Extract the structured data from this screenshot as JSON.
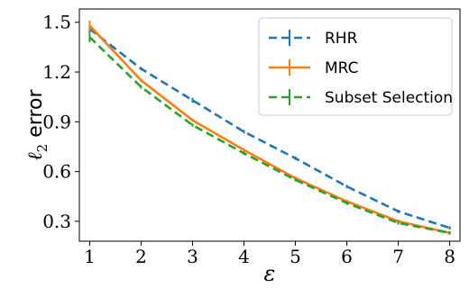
{
  "chart_data": {
    "type": "line",
    "x": [
      1,
      2,
      3,
      4,
      5,
      6,
      7,
      8
    ],
    "xlabel": "ε",
    "ylabel_math": "ℓ",
    "ylabel_sub": "2",
    "ylabel_text": " error",
    "xlim": [
      0.8,
      8.2
    ],
    "ylim": [
      0.18,
      1.58
    ],
    "xticks": [
      "1",
      "2",
      "3",
      "4",
      "5",
      "6",
      "7",
      "8"
    ],
    "yticks": [
      "0.3",
      "0.6",
      "0.9",
      "1.2",
      "1.5"
    ],
    "grid": false,
    "legend_position": "top-right",
    "series": [
      {
        "name": "RHR",
        "color": "#1f77b4",
        "dash": "dashed",
        "values": [
          1.46,
          1.22,
          1.03,
          0.84,
          0.68,
          0.51,
          0.36,
          0.26
        ],
        "err": [
          0.02,
          0.01,
          0.015,
          0.01,
          0.01,
          0.01,
          0.01,
          0.01
        ]
      },
      {
        "name": "MRC",
        "color": "#ff7f0e",
        "dash": "solid",
        "values": [
          1.48,
          1.15,
          0.91,
          0.73,
          0.56,
          0.42,
          0.3,
          0.23
        ],
        "err": [
          0.03,
          0.01,
          0.01,
          0.01,
          0.01,
          0.01,
          0.01,
          0.01
        ]
      },
      {
        "name": "Subset Selection",
        "color": "#2ca02c",
        "dash": "dashed",
        "values": [
          1.41,
          1.11,
          0.88,
          0.71,
          0.55,
          0.41,
          0.29,
          0.23
        ],
        "err": [
          0.03,
          0.01,
          0.01,
          0.01,
          0.01,
          0.01,
          0.01,
          0.01
        ]
      }
    ]
  }
}
